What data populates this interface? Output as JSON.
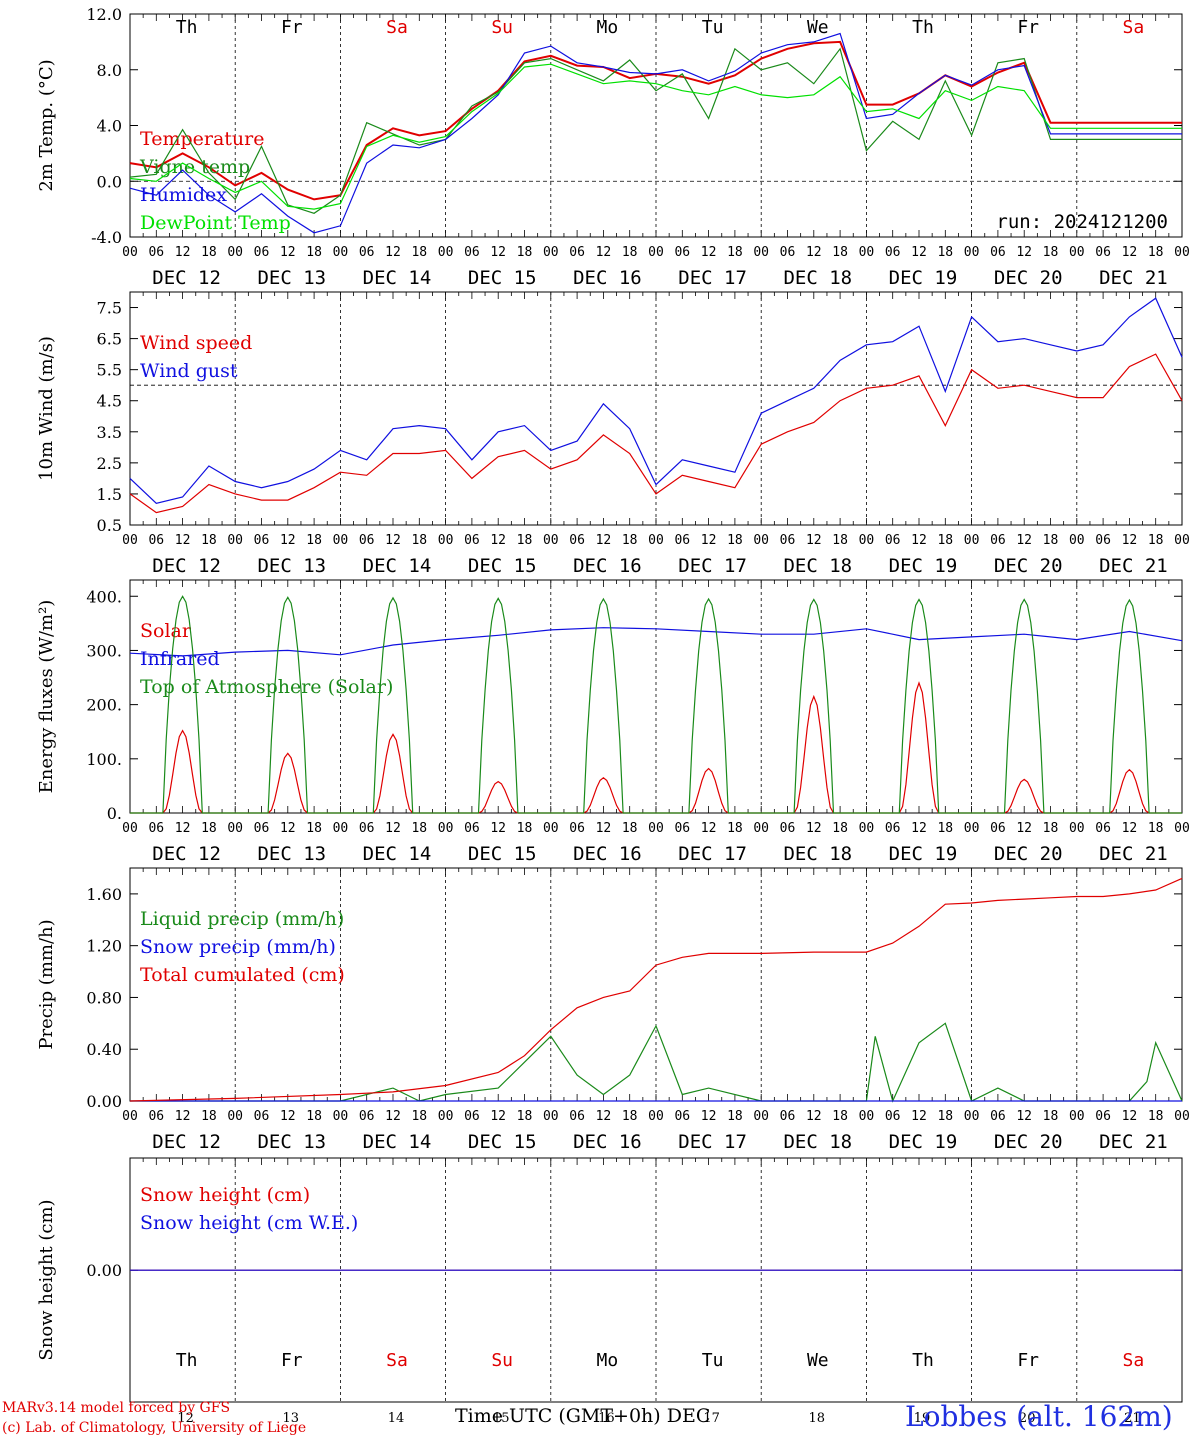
{
  "run_label": "run: 2024121200",
  "x_axis_title": "Time UTC (GMT+0h)",
  "x_axis_unit": "DEC",
  "station": "Lobbes (alt. 162m)",
  "credits": [
    "MARv3.14 model forced by GFS",
    "(c) Lab. of Climatology, University of Liege"
  ],
  "weekdays": [
    "Th",
    "Fr",
    "Sa",
    "Su",
    "Mo",
    "Tu",
    "We",
    "Th",
    "Fr",
    "Sa"
  ],
  "weekend_flags": [
    false,
    false,
    true,
    true,
    false,
    false,
    false,
    false,
    false,
    true
  ],
  "date_labels": [
    "DEC 12",
    "DEC 13",
    "DEC 14",
    "DEC 15",
    "DEC 16",
    "DEC 17",
    "DEC 18",
    "DEC 19",
    "DEC 20",
    "DEC 21"
  ],
  "day_numbers": [
    "12",
    "13",
    "14",
    "15",
    "16",
    "17",
    "18",
    "19",
    "20",
    "21"
  ],
  "hour_ticks": [
    "00",
    "06",
    "12",
    "18"
  ],
  "colors": {
    "red": "#e00000",
    "green": "#1a8a1a",
    "blue": "#1010e0",
    "lime": "#00e000"
  },
  "chart_data": [
    {
      "type": "line",
      "ylabel": "2m Temp. (°C)",
      "ylim": [
        -4,
        12
      ],
      "yticks": [
        "-4.0",
        "0.0",
        "4.0",
        "8.0",
        "12.0"
      ],
      "ytick_values": [
        -4,
        0,
        4,
        8,
        12
      ],
      "dashed_ref": 0,
      "x_unit": "hours since DEC 12 00 UTC",
      "series": [
        {
          "name": "Temperature",
          "color": "#e00000",
          "x": [
            0,
            6,
            12,
            18,
            24,
            30,
            36,
            42,
            48,
            54,
            60,
            66,
            72,
            78,
            84,
            90,
            96,
            102,
            108,
            114,
            120,
            126,
            132,
            138,
            144,
            150,
            156,
            162,
            168,
            174,
            180,
            186,
            192,
            198,
            204,
            210,
            216,
            222,
            228,
            234,
            240
          ],
          "values": [
            1.3,
            1.0,
            2.0,
            1.0,
            -0.3,
            0.6,
            -0.6,
            -1.3,
            -1.0,
            2.6,
            3.8,
            3.3,
            3.6,
            5.2,
            6.5,
            8.6,
            9.0,
            8.3,
            8.2,
            7.4,
            7.7,
            7.5,
            7.0,
            7.6,
            8.8,
            9.5,
            9.9,
            10.0,
            5.5,
            5.5,
            6.3,
            7.6,
            6.8,
            7.8,
            8.5,
            4.2,
            4.2,
            4.2,
            4.2,
            4.2,
            4.2
          ]
        },
        {
          "name": "Vigne temp",
          "color": "#1a8a1a",
          "x": [
            0,
            6,
            12,
            18,
            24,
            30,
            36,
            42,
            48,
            54,
            60,
            66,
            72,
            78,
            84,
            90,
            96,
            102,
            108,
            114,
            120,
            126,
            132,
            138,
            144,
            150,
            156,
            162,
            168,
            174,
            180,
            186,
            192,
            198,
            204,
            210,
            216,
            222,
            228,
            234,
            240
          ],
          "values": [
            0.3,
            0.5,
            3.7,
            0.6,
            -1.3,
            2.5,
            -1.7,
            -2.3,
            -1.0,
            4.2,
            3.4,
            2.6,
            3.0,
            5.4,
            6.4,
            8.5,
            8.8,
            8.0,
            7.2,
            8.7,
            6.5,
            7.7,
            4.5,
            9.5,
            8.0,
            8.5,
            7.0,
            9.5,
            2.2,
            4.3,
            3.0,
            7.2,
            3.3,
            8.5,
            8.8,
            3.0,
            3.0,
            3.0,
            3.0,
            3.0,
            3.0
          ]
        },
        {
          "name": "Humidex",
          "color": "#1010e0",
          "x": [
            0,
            6,
            12,
            18,
            24,
            30,
            36,
            42,
            48,
            54,
            60,
            66,
            72,
            78,
            84,
            90,
            96,
            102,
            108,
            114,
            120,
            126,
            132,
            138,
            144,
            150,
            156,
            162,
            168,
            174,
            180,
            186,
            192,
            198,
            204,
            210,
            216,
            222,
            228,
            234,
            240
          ],
          "values": [
            -0.5,
            -1.0,
            0.8,
            -1.0,
            -2.2,
            -0.9,
            -2.5,
            -3.7,
            -3.2,
            1.3,
            2.6,
            2.4,
            3.0,
            4.5,
            6.2,
            9.2,
            9.7,
            8.5,
            8.2,
            7.8,
            7.7,
            8.0,
            7.2,
            7.9,
            9.2,
            9.8,
            10.0,
            10.6,
            4.5,
            4.8,
            6.3,
            7.6,
            6.9,
            8.0,
            8.3,
            3.4,
            3.4,
            3.4,
            3.4,
            3.4,
            3.4
          ]
        },
        {
          "name": "DewPoint Temp",
          "color": "#00e000",
          "x": [
            0,
            6,
            12,
            18,
            24,
            30,
            36,
            42,
            48,
            54,
            60,
            66,
            72,
            78,
            84,
            90,
            96,
            102,
            108,
            114,
            120,
            126,
            132,
            138,
            144,
            150,
            156,
            162,
            168,
            174,
            180,
            186,
            192,
            198,
            204,
            210,
            216,
            222,
            228,
            234,
            240
          ],
          "values": [
            0.2,
            0.0,
            1.3,
            0.2,
            -0.8,
            0.0,
            -1.8,
            -2.0,
            -1.6,
            2.5,
            3.3,
            2.8,
            3.2,
            5.0,
            6.3,
            8.2,
            8.4,
            7.7,
            7.0,
            7.2,
            7.0,
            6.5,
            6.2,
            6.8,
            6.2,
            6.0,
            6.2,
            7.5,
            5.0,
            5.2,
            4.5,
            6.5,
            5.8,
            6.8,
            6.5,
            3.8,
            3.8,
            3.8,
            3.8,
            3.8,
            3.8
          ]
        }
      ]
    },
    {
      "type": "line",
      "ylabel": "10m Wind (m/s)",
      "ylim": [
        0.5,
        8.0
      ],
      "yticks": [
        "0.5",
        "1.5",
        "2.5",
        "3.5",
        "4.5",
        "5.5",
        "6.5",
        "7.5"
      ],
      "ytick_values": [
        0.5,
        1.5,
        2.5,
        3.5,
        4.5,
        5.5,
        6.5,
        7.5
      ],
      "dashed_ref": 5.0,
      "series": [
        {
          "name": "Wind speed",
          "color": "#e00000",
          "x": [
            0,
            6,
            12,
            18,
            24,
            30,
            36,
            42,
            48,
            54,
            60,
            66,
            72,
            78,
            84,
            90,
            96,
            102,
            108,
            114,
            120,
            126,
            132,
            138,
            144,
            150,
            156,
            162,
            168,
            174,
            180,
            186,
            192,
            198,
            204,
            210,
            216,
            222,
            228,
            234,
            240
          ],
          "values": [
            1.5,
            0.9,
            1.1,
            1.8,
            1.5,
            1.3,
            1.3,
            1.7,
            2.2,
            2.1,
            2.8,
            2.8,
            2.9,
            2.0,
            2.7,
            2.9,
            2.3,
            2.6,
            3.4,
            2.8,
            1.5,
            2.1,
            1.9,
            1.7,
            3.1,
            3.5,
            3.8,
            4.5,
            4.9,
            5.0,
            5.3,
            3.7,
            5.5,
            4.9,
            5.0,
            4.8,
            4.6,
            4.6,
            5.6,
            6.0,
            4.5
          ]
        },
        {
          "name": "Wind gust",
          "color": "#1010e0",
          "x": [
            0,
            6,
            12,
            18,
            24,
            30,
            36,
            42,
            48,
            54,
            60,
            66,
            72,
            78,
            84,
            90,
            96,
            102,
            108,
            114,
            120,
            126,
            132,
            138,
            144,
            150,
            156,
            162,
            168,
            174,
            180,
            186,
            192,
            198,
            204,
            210,
            216,
            222,
            228,
            234,
            240
          ],
          "values": [
            2.0,
            1.2,
            1.4,
            2.4,
            1.9,
            1.7,
            1.9,
            2.3,
            2.9,
            2.6,
            3.6,
            3.7,
            3.6,
            2.6,
            3.5,
            3.7,
            2.9,
            3.2,
            4.4,
            3.6,
            1.8,
            2.6,
            2.4,
            2.2,
            4.1,
            4.5,
            4.9,
            5.8,
            6.3,
            6.4,
            6.9,
            4.8,
            7.2,
            6.4,
            6.5,
            6.3,
            6.1,
            6.3,
            7.2,
            7.8,
            5.9
          ]
        }
      ]
    },
    {
      "type": "line",
      "ylabel": "Energy fluxes (W/m²)",
      "ylim": [
        0,
        430
      ],
      "yticks": [
        "0.",
        "100.",
        "200.",
        "300.",
        "400."
      ],
      "ytick_values": [
        0,
        100,
        200,
        300,
        400
      ],
      "series": [
        {
          "name": "Solar",
          "color": "#e00000",
          "daily_peaks": [
            152,
            110,
            145,
            58,
            65,
            82,
            215,
            240,
            62,
            80
          ]
        },
        {
          "name": "Infrared",
          "color": "#1010e0",
          "x": [
            0,
            12,
            24,
            36,
            48,
            60,
            72,
            84,
            96,
            108,
            120,
            132,
            144,
            156,
            168,
            180,
            192,
            204,
            216,
            228,
            240
          ],
          "values": [
            295,
            290,
            297,
            300,
            292,
            310,
            320,
            328,
            338,
            342,
            340,
            335,
            330,
            330,
            340,
            320,
            325,
            330,
            320,
            335,
            318
          ]
        },
        {
          "name": "Top of Atmosphere (Solar)",
          "color": "#1a8a1a",
          "daily_peaks": [
            400,
            398,
            397,
            396,
            395,
            395,
            394,
            394,
            394,
            393
          ]
        }
      ]
    },
    {
      "type": "line",
      "ylabel": "Precip (mm/h)",
      "ylim": [
        0,
        1.8
      ],
      "yticks": [
        "0.00",
        "0.40",
        "0.80",
        "1.20",
        "1.60"
      ],
      "ytick_values": [
        0,
        0.4,
        0.8,
        1.2,
        1.6
      ],
      "series": [
        {
          "name": "Liquid precip (mm/h)",
          "color": "#1a8a1a",
          "x": [
            0,
            48,
            60,
            66,
            72,
            84,
            90,
            96,
            102,
            108,
            114,
            120,
            126,
            132,
            144,
            156,
            168,
            170,
            174,
            180,
            186,
            192,
            198,
            204,
            210,
            216,
            222,
            228,
            232,
            234,
            240
          ],
          "values": [
            0,
            0,
            0.1,
            0,
            0.05,
            0.1,
            0.3,
            0.5,
            0.2,
            0.05,
            0.2,
            0.58,
            0.05,
            0.1,
            0,
            0,
            0,
            0.5,
            0,
            0.45,
            0.6,
            0,
            0.1,
            0,
            0,
            0,
            0,
            0,
            0.15,
            0.45,
            0
          ]
        },
        {
          "name": "Snow precip (mm/h)",
          "color": "#1010e0",
          "x": [
            0,
            240
          ],
          "values": [
            0,
            0
          ]
        },
        {
          "name": "Total cumulated (cm)",
          "color": "#e00000",
          "x": [
            0,
            24,
            48,
            60,
            72,
            84,
            90,
            96,
            102,
            108,
            114,
            120,
            126,
            132,
            144,
            156,
            168,
            174,
            180,
            186,
            192,
            198,
            204,
            210,
            216,
            222,
            228,
            234,
            240
          ],
          "values": [
            0.0,
            0.02,
            0.05,
            0.07,
            0.12,
            0.22,
            0.35,
            0.55,
            0.72,
            0.8,
            0.85,
            1.05,
            1.11,
            1.14,
            1.14,
            1.15,
            1.15,
            1.22,
            1.35,
            1.52,
            1.53,
            1.55,
            1.56,
            1.57,
            1.58,
            1.58,
            1.6,
            1.63,
            1.72
          ]
        }
      ]
    },
    {
      "type": "line",
      "ylabel": "Snow height (cm)",
      "yticks": [
        "0.00"
      ],
      "ytick_values": [
        0
      ],
      "series": [
        {
          "name": "Snow height (cm)",
          "color": "#e00000",
          "x": [
            0,
            240
          ],
          "values": [
            0,
            0
          ]
        },
        {
          "name": "Snow height (cm W.E.)",
          "color": "#1010e0",
          "x": [
            0,
            240
          ],
          "values": [
            0,
            0
          ]
        }
      ]
    }
  ]
}
